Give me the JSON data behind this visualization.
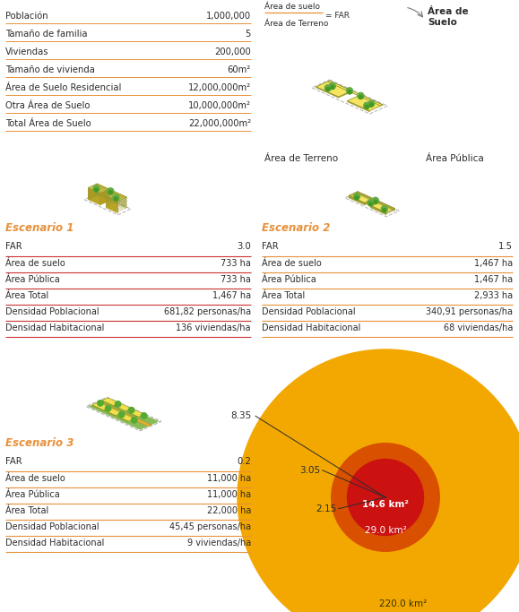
{
  "bg_color": "#ffffff",
  "orange_line": "#E8913A",
  "red_line": "#CC3333",
  "orange_text": "#E8913A",
  "dark_text": "#2C2C2C",
  "table1_rows": [
    [
      "Población",
      "1,000,000"
    ],
    [
      "Tamaño de familia",
      "5"
    ],
    [
      "Viviendas",
      "200,000"
    ],
    [
      "Tamaño de vivienda",
      "60m²"
    ],
    [
      "Área de Suelo Residencial",
      "12,000,000m²"
    ],
    [
      "Otra Área de Suelo",
      "10,000,000m²"
    ],
    [
      "Total Área de Suelo",
      "22,000,000m²"
    ]
  ],
  "far_label1": "Área de suelo",
  "far_label2": "Área de Terreno",
  "far_eq": "= FAR",
  "area_suelo_label": "Área de\nSuelo",
  "terreno_label": "Área de Terreno",
  "publica_label": "Área Pública",
  "escenario1_label": "Escenario 1",
  "escenario2_label": "Escenario 2",
  "escenario3_label": "Escenario 3",
  "s1_far": "3.0",
  "s1_rows": [
    [
      "Área de suelo",
      "733 ha"
    ],
    [
      "Área Pública",
      "733 ha"
    ],
    [
      "Área Total",
      "1,467 ha"
    ],
    [
      "Densidad Poblacional",
      "681,82 personas/ha"
    ],
    [
      "Densidad Habitacional",
      "136 viviendas/ha"
    ]
  ],
  "s2_far": "1.5",
  "s2_rows": [
    [
      "Área de suelo",
      "1,467 ha"
    ],
    [
      "Área Pública",
      "1,467 ha"
    ],
    [
      "Área Total",
      "2,933 ha"
    ],
    [
      "Densidad Poblacional",
      "340,91 personas/ha"
    ],
    [
      "Densidad Habitacional",
      "68 viviendas/ha"
    ]
  ],
  "s3_far": "0.2",
  "s3_rows": [
    [
      "Área de suelo",
      "11,000 ha"
    ],
    [
      "Área Pública",
      "11,000 ha"
    ],
    [
      "Área Total",
      "22,000 ha"
    ],
    [
      "Densidad Poblacional",
      "45,45 personas/ha"
    ],
    [
      "Densidad Habitacional",
      "9 viviendas/ha"
    ]
  ],
  "circle_colors": [
    "#CC1111",
    "#D95000",
    "#F2A800"
  ],
  "circle_radii_km": [
    2.15,
    3.05,
    8.35
  ],
  "circle_labels_km2": [
    "14.6 km²",
    "29.0 km²",
    "220.0 km²"
  ]
}
